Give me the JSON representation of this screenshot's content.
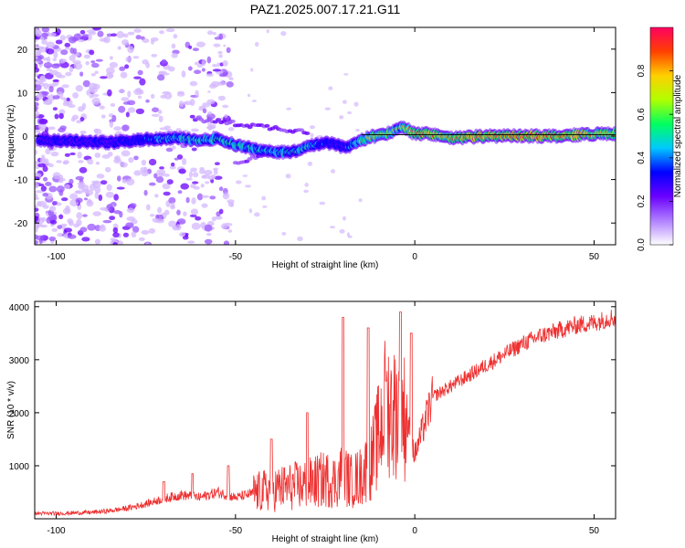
{
  "title": "PAZ1.2025.007.17.21.G11",
  "chart_data": [
    {
      "type": "heatmap",
      "xlabel": "Height of straight line (km)",
      "ylabel": "Frequency (Hz)",
      "xlim": [
        -106,
        56
      ],
      "ylim": [
        -25,
        25
      ],
      "xticks": [
        -100,
        -50,
        0,
        50
      ],
      "yticks": [
        -20,
        -10,
        0,
        10,
        20
      ],
      "colorbar": {
        "label": "Normalized spectral amplitude",
        "range": [
          0,
          1
        ],
        "ticks": [
          0.0,
          0.2,
          0.4,
          0.6,
          0.8
        ],
        "tick_labels": [
          "0.0",
          "0.2",
          "0.4",
          "0.6",
          "0.8"
        ],
        "colormap": "rainbow",
        "colors": [
          "#ffffff",
          "#b080ff",
          "#6a00ff",
          "#0000ff",
          "#00c8ff",
          "#00ff60",
          "#b0ff00",
          "#ffd000",
          "#ff4000",
          "#ff0060"
        ]
      },
      "ridge_frequency": {
        "x": [
          -103,
          -95,
          -85,
          -75,
          -65,
          -60,
          -55,
          -50,
          -45,
          -40,
          -35,
          -30,
          -25,
          -22,
          -20,
          -18,
          -15,
          -12,
          -10,
          -8,
          -5,
          -3,
          0,
          5,
          10,
          20,
          30,
          40,
          50,
          56
        ],
        "y": [
          -1.0,
          -1.2,
          -1.5,
          -0.8,
          -0.5,
          -1.0,
          -0.5,
          -2.0,
          -3.0,
          -3.5,
          -3.8,
          -2.5,
          -1.5,
          -2.0,
          -2.5,
          -2.2,
          -1.0,
          0.0,
          0.0,
          0.5,
          1.5,
          2.0,
          0.5,
          0.5,
          -0.5,
          0.0,
          0.0,
          0.0,
          0.5,
          0.5
        ]
      },
      "ridge_amplitude": {
        "x": [
          -103,
          -90,
          -80,
          -70,
          -60,
          -50,
          -40,
          -30,
          -25,
          -20,
          -15,
          -10,
          -5,
          0,
          10,
          20,
          30,
          40,
          50,
          56
        ],
        "y": [
          0.25,
          0.25,
          0.3,
          0.45,
          0.5,
          0.55,
          0.45,
          0.5,
          0.35,
          0.25,
          0.6,
          0.75,
          0.6,
          0.85,
          0.8,
          0.85,
          0.9,
          0.85,
          0.8,
          0.7
        ]
      },
      "grid": false
    },
    {
      "type": "line",
      "xlabel": "Height of straight line (km)",
      "ylabel": "SNR (10 * v/v)",
      "xlim": [
        -106,
        56
      ],
      "ylim": [
        0,
        4100
      ],
      "xticks": [
        -100,
        -50,
        0,
        50
      ],
      "yticks": [
        1000,
        2000,
        3000,
        4000
      ],
      "grid": false,
      "series": [
        {
          "color": "#ee3030",
          "x": [
            -106,
            -100,
            -95,
            -90,
            -85,
            -80,
            -75,
            -70,
            -65,
            -60,
            -55,
            -50,
            -45,
            -40,
            -35,
            -30,
            -25,
            -22,
            -20,
            -18,
            -15,
            -12,
            -10,
            -8,
            -6,
            -4,
            -2,
            0,
            5,
            10,
            15,
            20,
            25,
            30,
            35,
            40,
            45,
            50,
            55,
            56
          ],
          "y": [
            100,
            100,
            110,
            120,
            150,
            200,
            280,
            380,
            450,
            400,
            500,
            400,
            480,
            550,
            600,
            650,
            750,
            700,
            900,
            700,
            800,
            1100,
            1600,
            2200,
            2000,
            2100,
            1800,
            1200,
            2300,
            2500,
            2700,
            2900,
            3100,
            3300,
            3450,
            3550,
            3650,
            3700,
            3800,
            3750
          ]
        }
      ],
      "annotations_peaks": {
        "x": [
          -70,
          -62,
          -52,
          -40,
          -30,
          -20,
          -13,
          -8,
          -4,
          -1
        ],
        "y": [
          700,
          850,
          1000,
          1500,
          2000,
          3800,
          3600,
          2600,
          3900,
          3500
        ]
      }
    }
  ]
}
